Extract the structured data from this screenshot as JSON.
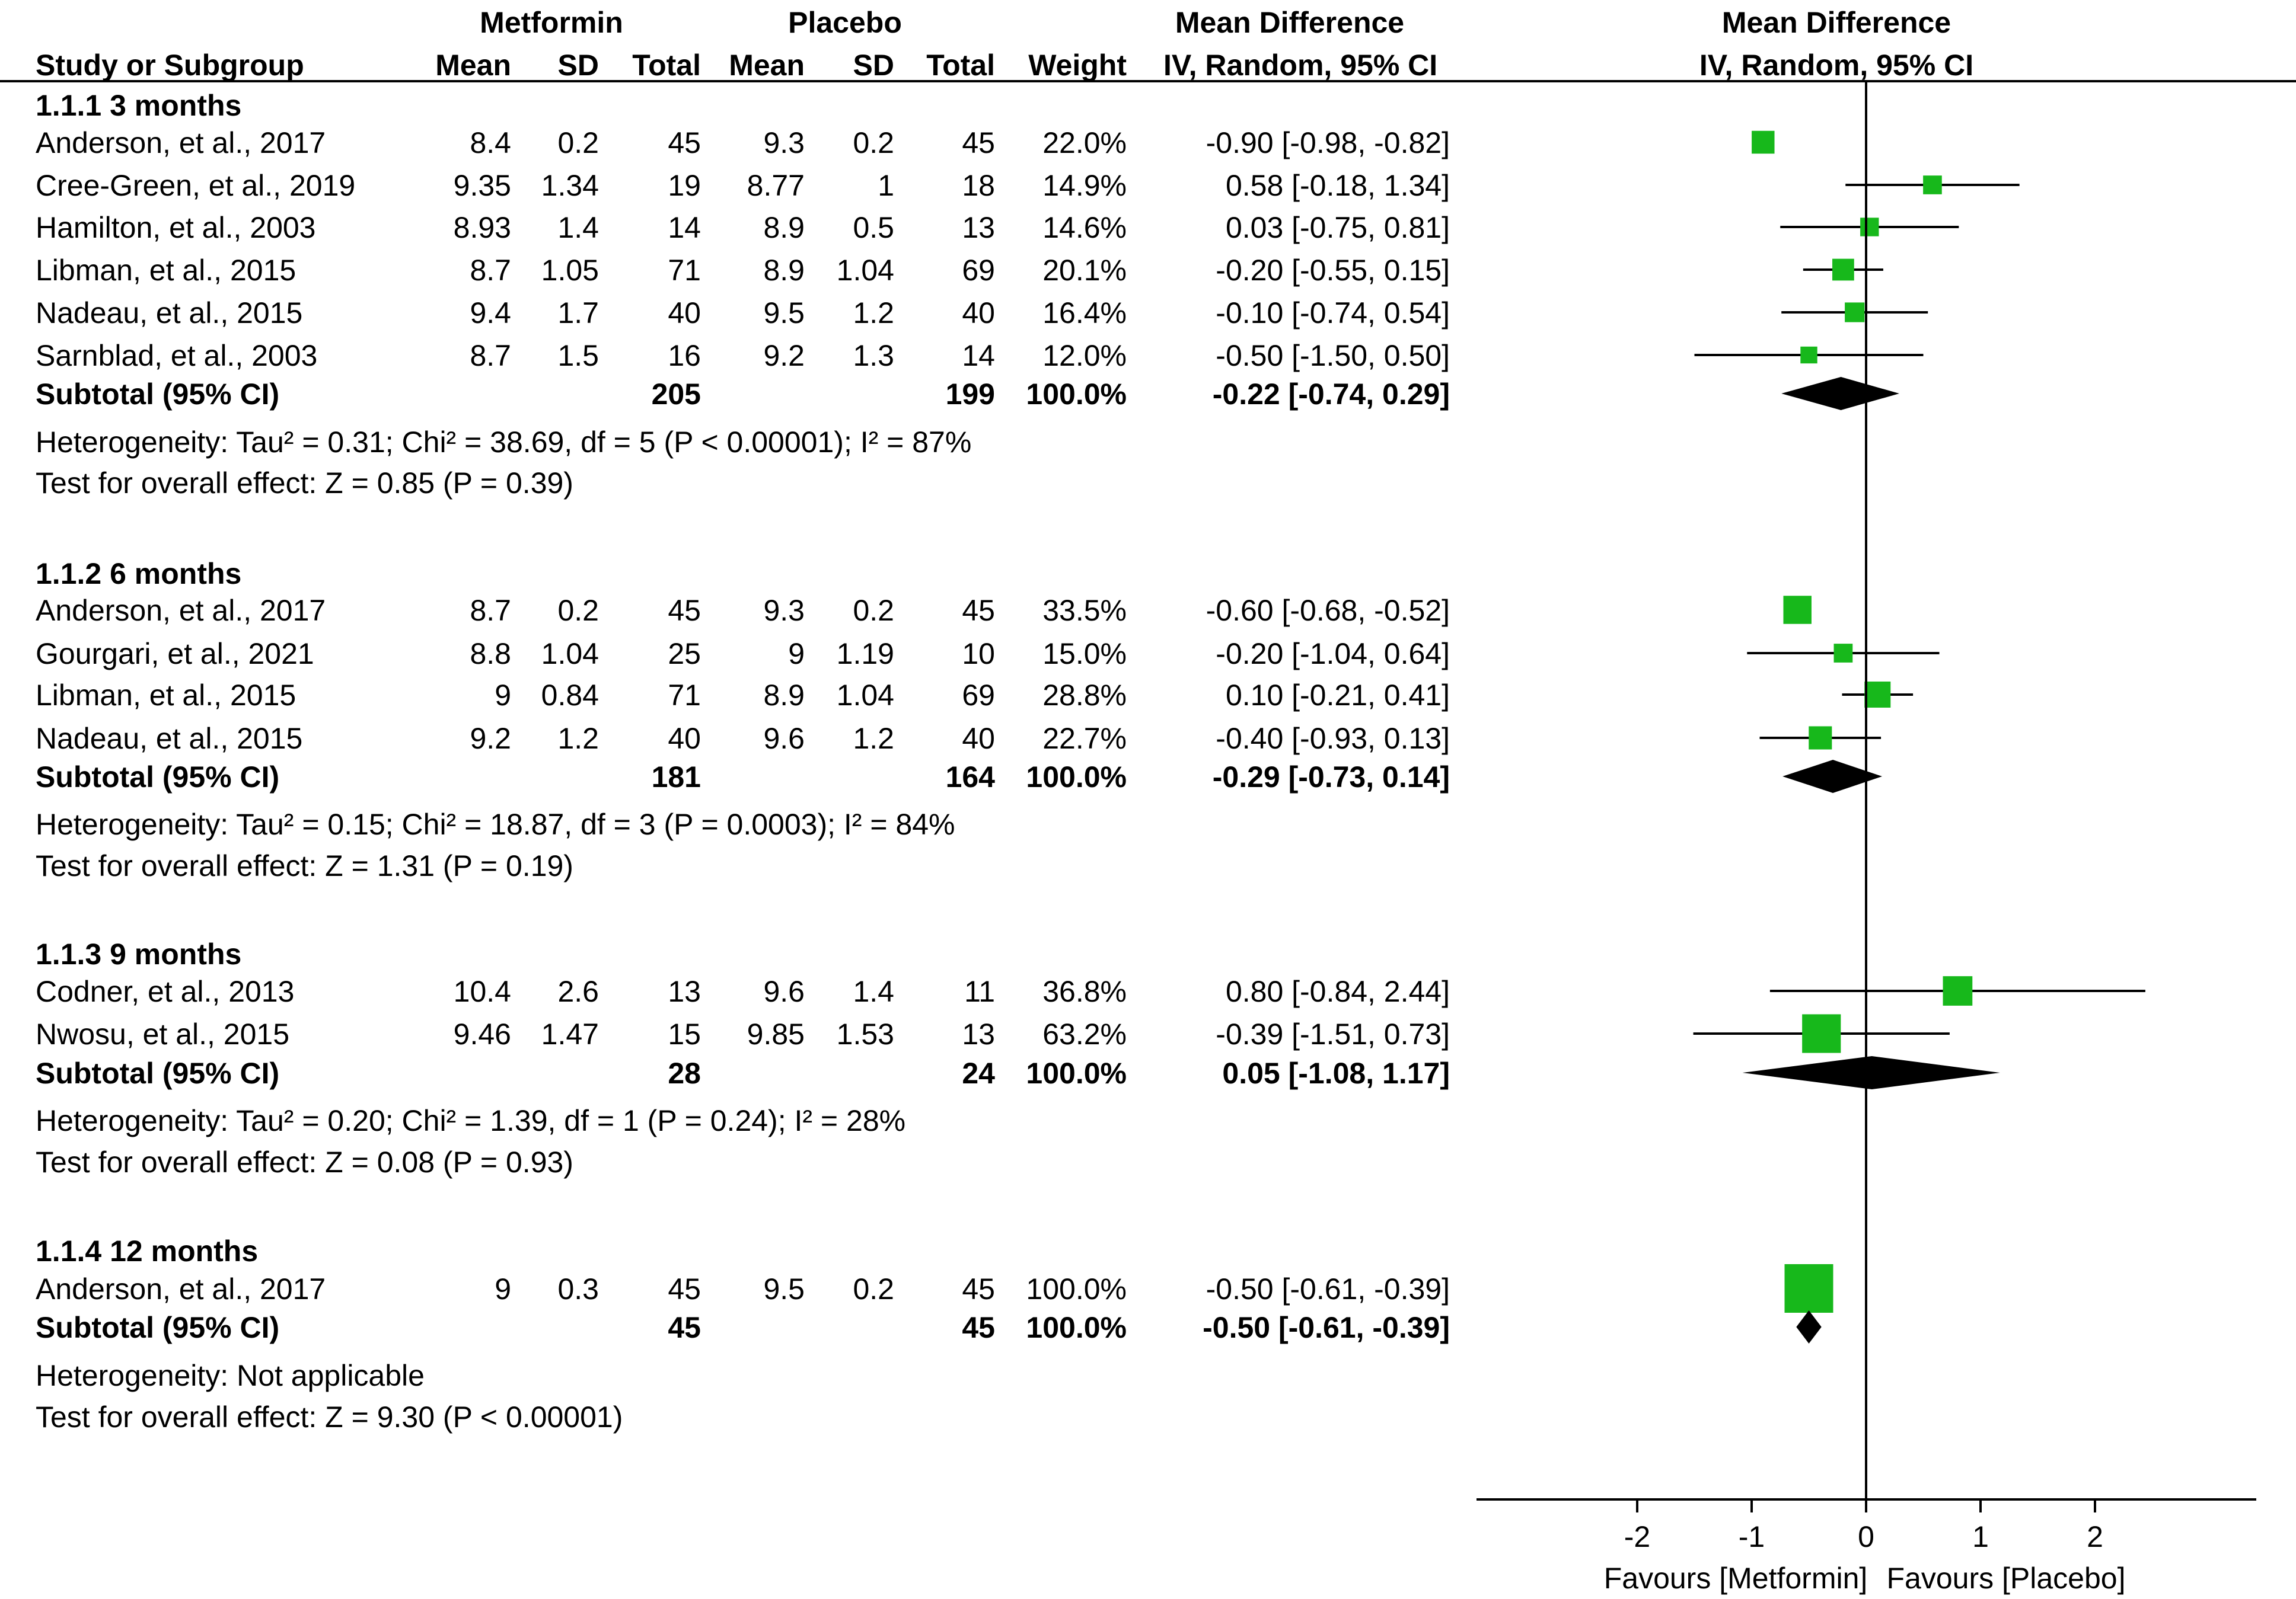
{
  "chart_data": {
    "type": "forest",
    "headers": {
      "group_metformin": "Metformin",
      "group_placebo": "Placebo",
      "group_md": "Mean Difference",
      "plot_title": "Mean Difference",
      "plot_subtitle": "IV, Random, 95% CI",
      "columns": [
        "Study or Subgroup",
        "Mean",
        "SD",
        "Total",
        "Mean",
        "SD",
        "Total",
        "Weight",
        "IV, Random, 95% CI"
      ]
    },
    "subgroups": [
      {
        "title": "1.1.1 3 months",
        "studies": [
          {
            "name": "Anderson, et al., 2017",
            "m_mean": "8.4",
            "m_sd": "0.2",
            "m_total": "45",
            "p_mean": "9.3",
            "p_sd": "0.2",
            "p_total": "45",
            "weight": "22.0%",
            "ci_text": "-0.90 [-0.98, -0.82]",
            "md": -0.9,
            "lo": -0.98,
            "hi": -0.82,
            "w": 22.0
          },
          {
            "name": "Cree-Green, et al., 2019",
            "m_mean": "9.35",
            "m_sd": "1.34",
            "m_total": "19",
            "p_mean": "8.77",
            "p_sd": "1",
            "p_total": "18",
            "weight": "14.9%",
            "ci_text": "0.58 [-0.18, 1.34]",
            "md": 0.58,
            "lo": -0.18,
            "hi": 1.34,
            "w": 14.9
          },
          {
            "name": "Hamilton, et al., 2003",
            "m_mean": "8.93",
            "m_sd": "1.4",
            "m_total": "14",
            "p_mean": "8.9",
            "p_sd": "0.5",
            "p_total": "13",
            "weight": "14.6%",
            "ci_text": "0.03 [-0.75, 0.81]",
            "md": 0.03,
            "lo": -0.75,
            "hi": 0.81,
            "w": 14.6
          },
          {
            "name": "Libman, et al., 2015",
            "m_mean": "8.7",
            "m_sd": "1.05",
            "m_total": "71",
            "p_mean": "8.9",
            "p_sd": "1.04",
            "p_total": "69",
            "weight": "20.1%",
            "ci_text": "-0.20 [-0.55, 0.15]",
            "md": -0.2,
            "lo": -0.55,
            "hi": 0.15,
            "w": 20.1
          },
          {
            "name": "Nadeau, et al., 2015",
            "m_mean": "9.4",
            "m_sd": "1.7",
            "m_total": "40",
            "p_mean": "9.5",
            "p_sd": "1.2",
            "p_total": "40",
            "weight": "16.4%",
            "ci_text": "-0.10 [-0.74, 0.54]",
            "md": -0.1,
            "lo": -0.74,
            "hi": 0.54,
            "w": 16.4
          },
          {
            "name": "Sarnblad, et al., 2003",
            "m_mean": "8.7",
            "m_sd": "1.5",
            "m_total": "16",
            "p_mean": "9.2",
            "p_sd": "1.3",
            "p_total": "14",
            "weight": "12.0%",
            "ci_text": "-0.50 [-1.50, 0.50]",
            "md": -0.5,
            "lo": -1.5,
            "hi": 0.5,
            "w": 12.0
          }
        ],
        "subtotal": {
          "label": "Subtotal (95% CI)",
          "m_total": "205",
          "p_total": "199",
          "weight": "100.0%",
          "ci_text": "-0.22 [-0.74, 0.29]",
          "md": -0.22,
          "lo": -0.74,
          "hi": 0.29
        },
        "heterogeneity": "Heterogeneity: Tau² = 0.31; Chi² = 38.69, df = 5 (P < 0.00001); I² = 87%",
        "overall": "Test for overall effect: Z = 0.85 (P = 0.39)"
      },
      {
        "title": "1.1.2 6 months",
        "studies": [
          {
            "name": "Anderson, et al., 2017",
            "m_mean": "8.7",
            "m_sd": "0.2",
            "m_total": "45",
            "p_mean": "9.3",
            "p_sd": "0.2",
            "p_total": "45",
            "weight": "33.5%",
            "ci_text": "-0.60 [-0.68, -0.52]",
            "md": -0.6,
            "lo": -0.68,
            "hi": -0.52,
            "w": 33.5
          },
          {
            "name": "Gourgari, et al., 2021",
            "m_mean": "8.8",
            "m_sd": "1.04",
            "m_total": "25",
            "p_mean": "9",
            "p_sd": "1.19",
            "p_total": "10",
            "weight": "15.0%",
            "ci_text": "-0.20 [-1.04, 0.64]",
            "md": -0.2,
            "lo": -1.04,
            "hi": 0.64,
            "w": 15.0
          },
          {
            "name": "Libman, et al., 2015",
            "m_mean": "9",
            "m_sd": "0.84",
            "m_total": "71",
            "p_mean": "8.9",
            "p_sd": "1.04",
            "p_total": "69",
            "weight": "28.8%",
            "ci_text": "0.10 [-0.21, 0.41]",
            "md": 0.1,
            "lo": -0.21,
            "hi": 0.41,
            "w": 28.8
          },
          {
            "name": "Nadeau, et al., 2015",
            "m_mean": "9.2",
            "m_sd": "1.2",
            "m_total": "40",
            "p_mean": "9.6",
            "p_sd": "1.2",
            "p_total": "40",
            "weight": "22.7%",
            "ci_text": "-0.40 [-0.93, 0.13]",
            "md": -0.4,
            "lo": -0.93,
            "hi": 0.13,
            "w": 22.7
          }
        ],
        "subtotal": {
          "label": "Subtotal (95% CI)",
          "m_total": "181",
          "p_total": "164",
          "weight": "100.0%",
          "ci_text": "-0.29 [-0.73, 0.14]",
          "md": -0.29,
          "lo": -0.73,
          "hi": 0.14
        },
        "heterogeneity": "Heterogeneity: Tau² = 0.15; Chi² = 18.87, df = 3 (P = 0.0003); I² = 84%",
        "overall": "Test for overall effect: Z = 1.31 (P = 0.19)"
      },
      {
        "title": "1.1.3 9 months",
        "studies": [
          {
            "name": "Codner, et al., 2013",
            "m_mean": "10.4",
            "m_sd": "2.6",
            "m_total": "13",
            "p_mean": "9.6",
            "p_sd": "1.4",
            "p_total": "11",
            "weight": "36.8%",
            "ci_text": "0.80 [-0.84, 2.44]",
            "md": 0.8,
            "lo": -0.84,
            "hi": 2.44,
            "w": 36.8
          },
          {
            "name": "Nwosu, et al., 2015",
            "m_mean": "9.46",
            "m_sd": "1.47",
            "m_total": "15",
            "p_mean": "9.85",
            "p_sd": "1.53",
            "p_total": "13",
            "weight": "63.2%",
            "ci_text": "-0.39 [-1.51, 0.73]",
            "md": -0.39,
            "lo": -1.51,
            "hi": 0.73,
            "w": 63.2
          }
        ],
        "subtotal": {
          "label": "Subtotal (95% CI)",
          "m_total": "28",
          "p_total": "24",
          "weight": "100.0%",
          "ci_text": "0.05 [-1.08, 1.17]",
          "md": 0.05,
          "lo": -1.08,
          "hi": 1.17
        },
        "heterogeneity": "Heterogeneity: Tau² = 0.20; Chi² = 1.39, df = 1 (P = 0.24); I² = 28%",
        "overall": "Test for overall effect: Z = 0.08 (P = 0.93)"
      },
      {
        "title": "1.1.4 12 months",
        "studies": [
          {
            "name": "Anderson, et al., 2017",
            "m_mean": "9",
            "m_sd": "0.3",
            "m_total": "45",
            "p_mean": "9.5",
            "p_sd": "0.2",
            "p_total": "45",
            "weight": "100.0%",
            "ci_text": "-0.50 [-0.61, -0.39]",
            "md": -0.5,
            "lo": -0.61,
            "hi": -0.39,
            "w": 100.0
          }
        ],
        "subtotal": {
          "label": "Subtotal (95% CI)",
          "m_total": "45",
          "p_total": "45",
          "weight": "100.0%",
          "ci_text": "-0.50 [-0.61, -0.39]",
          "md": -0.5,
          "lo": -0.61,
          "hi": -0.39
        },
        "heterogeneity": "Heterogeneity: Not applicable",
        "overall": "Test for overall effect: Z = 9.30 (P < 0.00001)"
      }
    ],
    "x_axis": {
      "ticks": [
        -2,
        -1,
        0,
        1,
        2
      ],
      "tick_labels": [
        "-2",
        "-1",
        "0",
        "1",
        "2"
      ],
      "xlim": [
        -3.4,
        3.4
      ],
      "label_left": "Favours [Metformin]",
      "label_right": "Favours [Placebo]"
    },
    "colors": {
      "marker": "#17b81b",
      "diamond": "#000000",
      "line": "#000000"
    }
  }
}
